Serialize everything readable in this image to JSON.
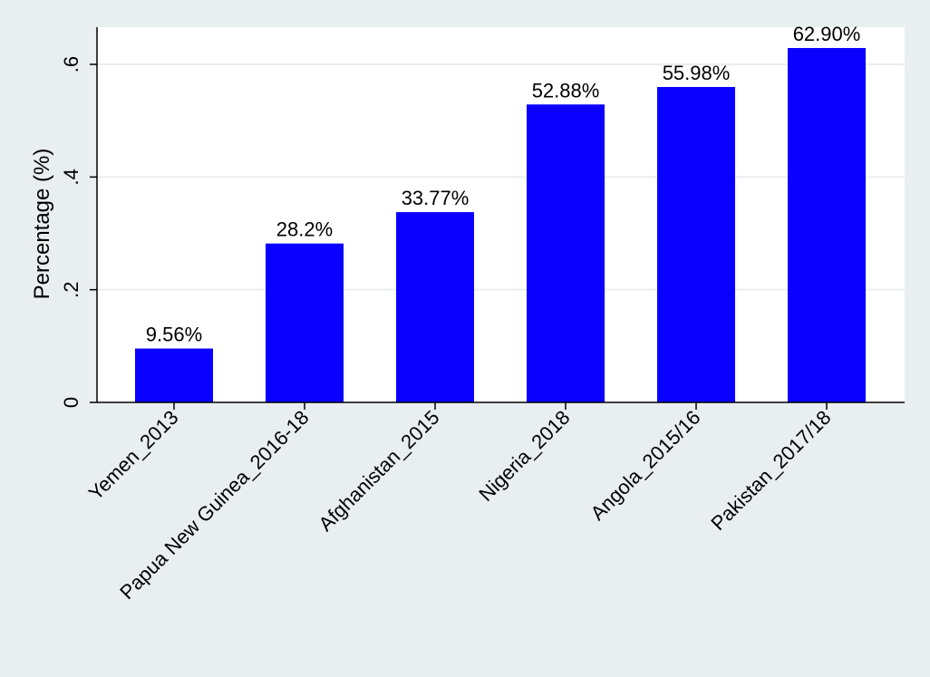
{
  "chart_data": {
    "type": "bar",
    "title": "",
    "xlabel": "",
    "ylabel": "Percentage (%)",
    "categories": [
      "Yemen_2013",
      "Papua New Guinea_2016-18",
      "Afghanistan_2015",
      "Nigeria_2018",
      "Angola_2015/16",
      "Pakistan_2017/18"
    ],
    "values": [
      0.0956,
      0.282,
      0.3377,
      0.5288,
      0.5598,
      0.629
    ],
    "data_labels": [
      "9.56%",
      "28.2%",
      "33.77%",
      "52.88%",
      "55.98%",
      "62.90%"
    ],
    "ylim": [
      0,
      0.6
    ],
    "yticks": [
      0,
      0.2,
      0.4,
      0.6
    ],
    "ytick_labels": [
      "0",
      ".2",
      ".4",
      ".6"
    ],
    "grid": true,
    "legend": "none",
    "colors": {
      "bar": "#0a00ff",
      "plot_background": "#ffffff",
      "page_background": "#e9eef1",
      "grid": "#e9eef1",
      "axis": "#000000"
    }
  }
}
